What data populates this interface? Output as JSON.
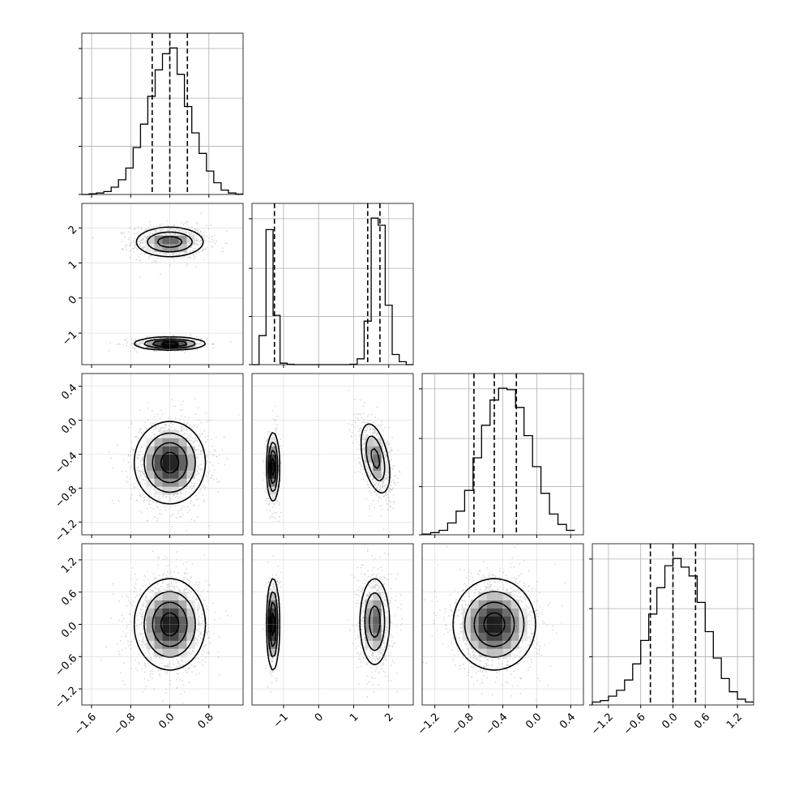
{
  "chart_data": {
    "type": "corner",
    "n_params": 4,
    "colors": {
      "line": "#000000",
      "grid": "#b0b0b0",
      "scatter": "#9a9a9a",
      "density_dark": "#000000",
      "density_light": "#ffffff"
    },
    "grid": true,
    "params": [
      {
        "range": [
          -1.8,
          1.5
        ],
        "ticks": [
          -1.6,
          -0.8,
          0.0,
          0.8
        ],
        "tick_labels": [
          "−1.6",
          "−0.8",
          "0.0",
          "0.8"
        ]
      },
      {
        "range": [
          -1.9,
          2.7
        ],
        "ticks": [
          -1,
          0,
          1,
          2
        ],
        "tick_labels": [
          "−1",
          "0",
          "1",
          "2"
        ]
      },
      {
        "range": [
          -1.35,
          0.55
        ],
        "ticks": [
          -1.2,
          -0.8,
          -0.4,
          0.0,
          0.4
        ],
        "tick_labels": [
          "−1.2",
          "−0.8",
          "−0.4",
          "0.0",
          "0.4"
        ]
      },
      {
        "range": [
          -1.5,
          1.5
        ],
        "ticks": [
          -1.2,
          -0.6,
          0.0,
          0.6,
          1.2
        ],
        "tick_labels": [
          "−1.2",
          "−0.6",
          "0.0",
          "0.6",
          "1.2"
        ]
      }
    ],
    "histograms": [
      {
        "param": 0,
        "bin_edges": [
          -1.8,
          -1.65,
          -1.5,
          -1.35,
          -1.2,
          -1.05,
          -0.9,
          -0.75,
          -0.6,
          -0.45,
          -0.3,
          -0.15,
          0.0,
          0.15,
          0.3,
          0.45,
          0.6,
          0.75,
          0.9,
          1.05,
          1.2,
          1.35,
          1.5
        ],
        "counts": [
          0.0,
          0.5,
          1,
          2,
          5,
          10,
          18,
          32,
          48,
          67,
          85,
          96,
          100,
          82,
          60,
          42,
          28,
          16,
          8,
          3,
          1,
          0.3
        ],
        "quantiles": [
          -0.36,
          0.0,
          0.36
        ]
      },
      {
        "param": 1,
        "bin_edges": [
          -1.9,
          -1.7,
          -1.5,
          -1.3,
          -1.1,
          -0.9,
          -0.7,
          -0.5,
          -0.3,
          -0.1,
          0.1,
          0.3,
          0.5,
          0.7,
          0.9,
          1.1,
          1.3,
          1.5,
          1.7,
          1.9,
          2.1,
          2.3,
          2.5,
          2.7
        ],
        "counts": [
          0,
          20,
          93,
          34,
          1,
          0.3,
          0,
          0,
          0,
          0,
          0,
          0,
          0,
          0,
          0.3,
          4,
          30,
          101,
          96,
          41,
          7,
          2,
          0
        ],
        "quantiles": [
          -1.26,
          1.4,
          1.75
        ]
      },
      {
        "param": 2,
        "bin_edges": [
          -1.35,
          -1.25,
          -1.15,
          -1.05,
          -0.95,
          -0.85,
          -0.75,
          -0.65,
          -0.55,
          -0.45,
          -0.35,
          -0.25,
          -0.15,
          -0.05,
          0.05,
          0.15,
          0.25,
          0.35,
          0.45
        ],
        "counts": [
          0.5,
          1.5,
          3,
          8,
          16,
          30,
          52,
          74,
          91,
          99,
          98,
          86,
          67,
          46,
          28,
          14,
          7,
          3
        ],
        "quantiles": [
          -0.74,
          -0.5,
          -0.24
        ]
      },
      {
        "param": 3,
        "bin_edges": [
          -1.5,
          -1.35,
          -1.2,
          -1.05,
          -0.9,
          -0.75,
          -0.6,
          -0.45,
          -0.3,
          -0.15,
          0.0,
          0.15,
          0.3,
          0.45,
          0.6,
          0.75,
          0.9,
          1.05,
          1.2,
          1.35,
          1.5
        ],
        "counts": [
          2,
          3,
          6,
          10,
          17,
          28,
          44,
          62,
          80,
          95,
          100,
          94,
          88,
          70,
          50,
          32,
          18,
          9,
          4,
          2
        ],
        "quantiles": [
          -0.42,
          0.0,
          0.42
        ]
      }
    ],
    "blobs": [
      {
        "x": 0,
        "y": 1,
        "modes": [
          {
            "cx": 0.0,
            "cy": 1.6,
            "sx": 0.36,
            "sy": 0.22,
            "rho": 0.0,
            "weight": 0.65
          },
          {
            "cx": 0.0,
            "cy": -1.3,
            "sx": 0.36,
            "sy": 0.09,
            "rho": 0.0,
            "weight": 0.35
          }
        ]
      },
      {
        "x": 0,
        "y": 2,
        "modes": [
          {
            "cx": 0.0,
            "cy": -0.5,
            "sx": 0.36,
            "sy": 0.24,
            "rho": 0.0,
            "weight": 1.0
          }
        ]
      },
      {
        "x": 0,
        "y": 3,
        "modes": [
          {
            "cx": 0.0,
            "cy": 0.0,
            "sx": 0.36,
            "sy": 0.42,
            "rho": 0.0,
            "weight": 1.0
          }
        ]
      },
      {
        "x": 1,
        "y": 2,
        "modes": [
          {
            "cx": -1.3,
            "cy": -0.55,
            "sx": 0.09,
            "sy": 0.2,
            "rho": 0.0,
            "weight": 0.35
          },
          {
            "cx": 1.62,
            "cy": -0.45,
            "sx": 0.22,
            "sy": 0.22,
            "rho": -0.45,
            "weight": 0.65
          }
        ]
      },
      {
        "x": 1,
        "y": 3,
        "modes": [
          {
            "cx": -1.3,
            "cy": 0.0,
            "sx": 0.09,
            "sy": 0.42,
            "rho": 0.0,
            "weight": 0.35
          },
          {
            "cx": 1.6,
            "cy": 0.05,
            "sx": 0.22,
            "sy": 0.42,
            "rho": 0.0,
            "weight": 0.65
          }
        ]
      },
      {
        "x": 2,
        "y": 3,
        "modes": [
          {
            "cx": -0.5,
            "cy": 0.0,
            "sx": 0.24,
            "sy": 0.42,
            "rho": 0.0,
            "weight": 1.0
          }
        ]
      }
    ]
  }
}
